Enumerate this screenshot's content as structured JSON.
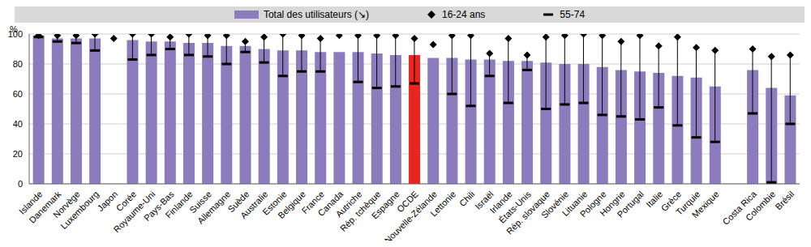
{
  "chart_data": {
    "type": "bar",
    "y_label": "%",
    "categories": [
      "Islande",
      "Danemark",
      "Norvège",
      "Luxembourg",
      "Japon",
      "Corée",
      "Royaume-Uni",
      "Pays-Bas",
      "Finlande",
      "Suisse",
      "Allemagne",
      "Suède",
      "Australie",
      "Estonie",
      "Belgique",
      "France",
      "Canada",
      "Autriche",
      "Rép. tchèque",
      "Espagne",
      "OCDE",
      "Nouvelle-Zélande",
      "Lettonie",
      "Chili",
      "Israël",
      "Irlande",
      "États-Unis",
      "Rép. slovaque",
      "Slovénie",
      "Lituanie",
      "Pologne",
      "Hongrie",
      "Portugal",
      "Italie",
      "Grèce",
      "Turquie",
      "Mexique",
      null,
      "Costa Rica",
      "Colombie",
      "Brésil"
    ],
    "series": [
      {
        "name": "Total des utilisateurs (↘)",
        "type": "bar",
        "colors": [
          "#8c7bbd",
          "#8c7bbd",
          "#8c7bbd",
          "#8c7bbd",
          "#8c7bbd",
          "#8c7bbd",
          "#8c7bbd",
          "#8c7bbd",
          "#8c7bbd",
          "#8c7bbd",
          "#8c7bbd",
          "#8c7bbd",
          "#8c7bbd",
          "#8c7bbd",
          "#8c7bbd",
          "#8c7bbd",
          "#8c7bbd",
          "#8c7bbd",
          "#8c7bbd",
          "#8c7bbd",
          "#e8251f",
          "#8c7bbd",
          "#8c7bbd",
          "#8c7bbd",
          "#8c7bbd",
          "#8c7bbd",
          "#8c7bbd",
          "#8c7bbd",
          "#8c7bbd",
          "#8c7bbd",
          "#8c7bbd",
          "#8c7bbd",
          "#8c7bbd",
          "#8c7bbd",
          "#8c7bbd",
          "#8c7bbd",
          "#8c7bbd",
          "#8c7bbd",
          "#8c7bbd",
          "#8c7bbd",
          "#8c7bbd"
        ],
        "values": [
          99,
          97,
          97,
          97,
          null,
          96,
          95,
          95,
          94,
          94,
          92,
          92,
          90,
          89,
          89,
          88,
          88,
          88,
          87,
          86,
          86,
          84,
          84,
          83,
          83,
          82,
          82,
          81,
          80,
          80,
          78,
          76,
          75,
          74,
          72,
          71,
          65,
          null,
          76,
          64,
          59
        ]
      },
      {
        "name": "16-24 ans",
        "type": "scatter",
        "marker": "diamond",
        "color": "#000000",
        "values": [
          99,
          99,
          99,
          100,
          97,
          100,
          100,
          98,
          100,
          99,
          99,
          95,
          98,
          100,
          99,
          97,
          99,
          99,
          99,
          99,
          97,
          93,
          99,
          99,
          87,
          97,
          86,
          98,
          99,
          100,
          99,
          95,
          99,
          92,
          98,
          91,
          89,
          null,
          90,
          85,
          86
        ]
      },
      {
        "name": "55-74",
        "type": "scatter",
        "marker": "dash",
        "color": "#000000",
        "values": [
          98,
          95,
          94,
          89,
          null,
          83,
          86,
          90,
          86,
          85,
          80,
          88,
          81,
          72,
          75,
          75,
          null,
          68,
          64,
          65,
          67,
          null,
          60,
          52,
          72,
          54,
          76,
          50,
          53,
          54,
          46,
          45,
          43,
          51,
          39,
          31,
          28,
          null,
          47,
          1,
          40
        ]
      }
    ],
    "ylim": [
      0,
      100
    ],
    "yticks": [
      0,
      20,
      40,
      60,
      80,
      100
    ],
    "grid": true,
    "legend": "top"
  }
}
